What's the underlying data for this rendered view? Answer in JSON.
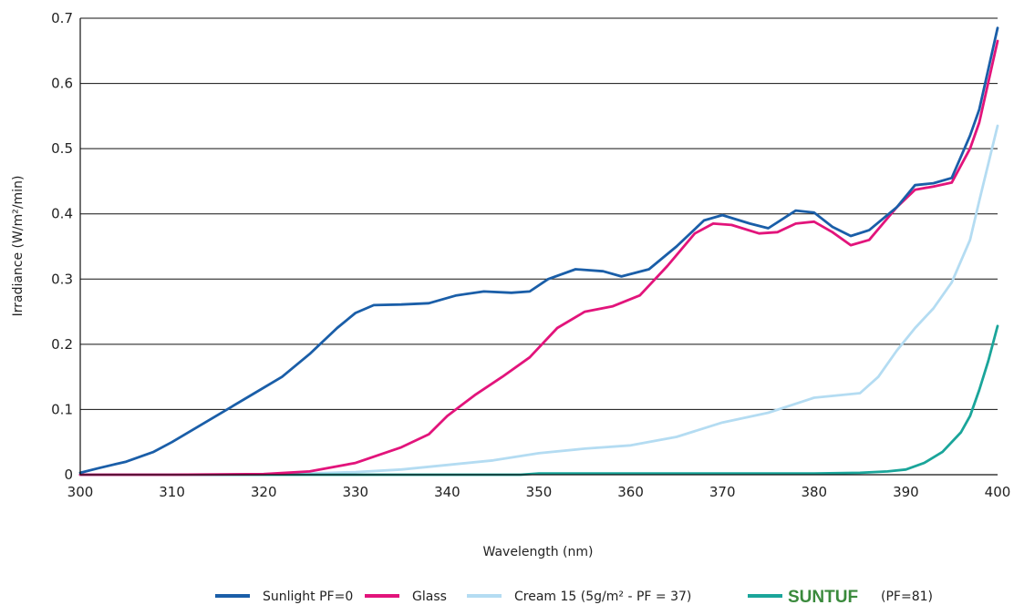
{
  "chart_data": {
    "type": "line",
    "title": "",
    "xlabel": "Wavelength (nm)",
    "ylabel": "Irradiance (W/m²/min)",
    "xlim": [
      300,
      400
    ],
    "ylim": [
      0,
      0.7
    ],
    "x_ticks": [
      "300",
      "310",
      "320",
      "330",
      "340",
      "350",
      "360",
      "370",
      "380",
      "390",
      "400"
    ],
    "y_ticks": [
      "0",
      "0.1",
      "0.2",
      "0.3",
      "0.4",
      "0.5",
      "0.6",
      "0.7"
    ],
    "grid": "horizontal",
    "legend_position": "bottom",
    "series": [
      {
        "name": "Sunlight PF=0",
        "color": "#1a5ea8",
        "points": [
          [
            300,
            0.003
          ],
          [
            302,
            0.01
          ],
          [
            305,
            0.02
          ],
          [
            308,
            0.035
          ],
          [
            310,
            0.05
          ],
          [
            313,
            0.075
          ],
          [
            316,
            0.1
          ],
          [
            319,
            0.125
          ],
          [
            322,
            0.15
          ],
          [
            325,
            0.185
          ],
          [
            328,
            0.225
          ],
          [
            330,
            0.248
          ],
          [
            332,
            0.26
          ],
          [
            335,
            0.261
          ],
          [
            338,
            0.263
          ],
          [
            341,
            0.275
          ],
          [
            344,
            0.281
          ],
          [
            347,
            0.279
          ],
          [
            349,
            0.281
          ],
          [
            351,
            0.3
          ],
          [
            354,
            0.315
          ],
          [
            357,
            0.312
          ],
          [
            359,
            0.304
          ],
          [
            362,
            0.315
          ],
          [
            365,
            0.35
          ],
          [
            368,
            0.39
          ],
          [
            370,
            0.398
          ],
          [
            373,
            0.385
          ],
          [
            375,
            0.378
          ],
          [
            378,
            0.405
          ],
          [
            380,
            0.402
          ],
          [
            382,
            0.38
          ],
          [
            384,
            0.366
          ],
          [
            386,
            0.375
          ],
          [
            389,
            0.41
          ],
          [
            391,
            0.444
          ],
          [
            393,
            0.447
          ],
          [
            395,
            0.455
          ],
          [
            397,
            0.52
          ],
          [
            398,
            0.56
          ],
          [
            400,
            0.685
          ]
        ]
      },
      {
        "name": "Glass",
        "color": "#e2147b",
        "points": [
          [
            300,
            0
          ],
          [
            310,
            0
          ],
          [
            320,
            0.001
          ],
          [
            325,
            0.005
          ],
          [
            330,
            0.018
          ],
          [
            335,
            0.042
          ],
          [
            338,
            0.062
          ],
          [
            340,
            0.09
          ],
          [
            343,
            0.122
          ],
          [
            346,
            0.15
          ],
          [
            349,
            0.18
          ],
          [
            352,
            0.225
          ],
          [
            355,
            0.25
          ],
          [
            358,
            0.258
          ],
          [
            361,
            0.275
          ],
          [
            364,
            0.32
          ],
          [
            367,
            0.37
          ],
          [
            369,
            0.385
          ],
          [
            371,
            0.383
          ],
          [
            374,
            0.37
          ],
          [
            376,
            0.372
          ],
          [
            378,
            0.385
          ],
          [
            380,
            0.388
          ],
          [
            382,
            0.372
          ],
          [
            384,
            0.352
          ],
          [
            386,
            0.36
          ],
          [
            389,
            0.41
          ],
          [
            391,
            0.437
          ],
          [
            393,
            0.442
          ],
          [
            395,
            0.448
          ],
          [
            397,
            0.5
          ],
          [
            398,
            0.54
          ],
          [
            400,
            0.665
          ]
        ]
      },
      {
        "name": "Cream 15 (5g/m² - PF = 37)",
        "color": "#b4dcf2",
        "points": [
          [
            300,
            0
          ],
          [
            315,
            0
          ],
          [
            325,
            0.002
          ],
          [
            330,
            0.004
          ],
          [
            335,
            0.008
          ],
          [
            340,
            0.015
          ],
          [
            345,
            0.022
          ],
          [
            350,
            0.033
          ],
          [
            355,
            0.04
          ],
          [
            360,
            0.045
          ],
          [
            365,
            0.058
          ],
          [
            370,
            0.08
          ],
          [
            375,
            0.095
          ],
          [
            380,
            0.118
          ],
          [
            385,
            0.125
          ],
          [
            387,
            0.15
          ],
          [
            389,
            0.19
          ],
          [
            391,
            0.225
          ],
          [
            393,
            0.255
          ],
          [
            395,
            0.295
          ],
          [
            397,
            0.36
          ],
          [
            398,
            0.42
          ],
          [
            400,
            0.535
          ]
        ]
      },
      {
        "name": "(PF=81)",
        "color": "#1aa59a",
        "points": [
          [
            300,
            0
          ],
          [
            320,
            0
          ],
          [
            340,
            0
          ],
          [
            348,
            0
          ],
          [
            350,
            0.002
          ],
          [
            360,
            0.002
          ],
          [
            370,
            0.002
          ],
          [
            380,
            0.002
          ],
          [
            385,
            0.003
          ],
          [
            388,
            0.005
          ],
          [
            390,
            0.008
          ],
          [
            392,
            0.018
          ],
          [
            394,
            0.035
          ],
          [
            396,
            0.065
          ],
          [
            397,
            0.09
          ],
          [
            398,
            0.13
          ],
          [
            399,
            0.175
          ],
          [
            400,
            0.228
          ]
        ]
      }
    ]
  },
  "legend": {
    "items": [
      {
        "label": "Sunlight PF=0",
        "color": "#1a5ea8"
      },
      {
        "label": "Glass",
        "color": "#e2147b"
      },
      {
        "label": "Cream 15 (5g/m² - PF = 37)",
        "color": "#b4dcf2"
      },
      {
        "label": "(PF=81)",
        "color": "#1aa59a",
        "logo_text": "SUNTUF"
      }
    ]
  }
}
